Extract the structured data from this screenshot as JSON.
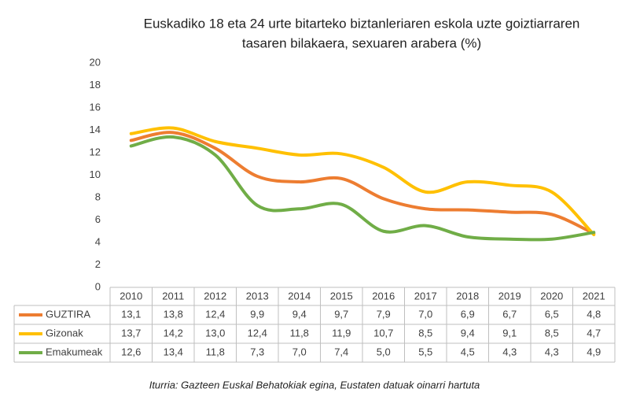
{
  "chart_data": {
    "type": "line",
    "title": [
      "Euskadiko 18 eta 24 urte bitarteko biztanleriaren eskola uzte goiztiarraren",
      "tasaren bilakaera, sexuaren arabera (%)"
    ],
    "categories": [
      "2010",
      "2011",
      "2012",
      "2013",
      "2014",
      "2015",
      "2016",
      "2017",
      "2018",
      "2019",
      "2020",
      "2021"
    ],
    "series": [
      {
        "name": "GUZTIRA",
        "color": "#ed7d31",
        "values": [
          13.1,
          13.8,
          12.4,
          9.9,
          9.4,
          9.7,
          7.9,
          7.0,
          6.9,
          6.7,
          6.5,
          4.8
        ],
        "value_labels": [
          "13,1",
          "13,8",
          "12,4",
          "9,9",
          "9,4",
          "9,7",
          "7,9",
          "7,0",
          "6,9",
          "6,7",
          "6,5",
          "4,8"
        ]
      },
      {
        "name": "Gizonak",
        "color": "#ffc000",
        "values": [
          13.7,
          14.2,
          13.0,
          12.4,
          11.8,
          11.9,
          10.7,
          8.5,
          9.4,
          9.1,
          8.5,
          4.7
        ],
        "value_labels": [
          "13,7",
          "14,2",
          "13,0",
          "12,4",
          "11,8",
          "11,9",
          "10,7",
          "8,5",
          "9,4",
          "9,1",
          "8,5",
          "4,7"
        ]
      },
      {
        "name": "Emakumeak",
        "color": "#70ad47",
        "values": [
          12.6,
          13.4,
          11.8,
          7.3,
          7.0,
          7.4,
          5.0,
          5.5,
          4.5,
          4.3,
          4.3,
          4.9
        ],
        "value_labels": [
          "12,6",
          "13,4",
          "11,8",
          "7,3",
          "7,0",
          "7,4",
          "5,0",
          "5,5",
          "4,5",
          "4,3",
          "4,3",
          "4,9"
        ]
      }
    ],
    "ylim": [
      0,
      20
    ],
    "yticks": [
      0,
      2,
      4,
      6,
      8,
      10,
      12,
      14,
      16,
      18,
      20
    ]
  },
  "source": "Iturria: Gazteen Euskal Behatokiak egina, Eustaten datuak oinarri hartuta"
}
